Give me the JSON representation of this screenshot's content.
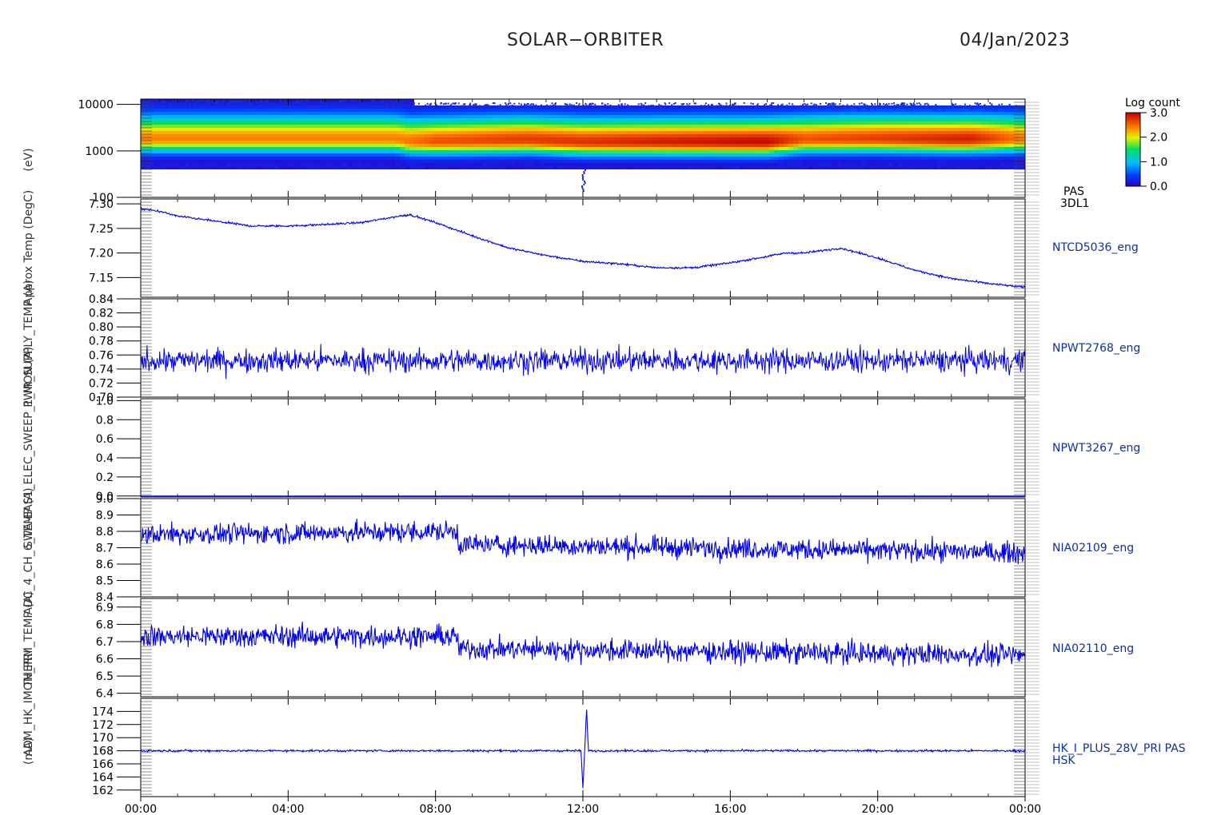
{
  "header": {
    "title": "SOLAR−ORBITER",
    "date": "04/Jan/2023"
  },
  "x_axis": {
    "range": [
      "00:00",
      "24:00"
    ],
    "tick_labels": [
      "00:00",
      "04:00",
      "08:00",
      "12:00",
      "16:00",
      "20:00",
      "00:00"
    ],
    "tick_hours": [
      0,
      4,
      8,
      12,
      16,
      20,
      24
    ]
  },
  "colorbar": {
    "title": "Log count",
    "ticks": [
      "3.0",
      "2.0",
      "1.0",
      "0.0"
    ],
    "range": [
      0,
      3
    ]
  },
  "side_labels": {
    "p0": [
      "PAS",
      "3DL1"
    ],
    "p1": [
      "NTCD5036_eng"
    ],
    "p2": [
      "NPWT2768_eng"
    ],
    "p3": [
      "NPWT3267_eng"
    ],
    "p4": [
      "NIA02109_eng"
    ],
    "p5": [
      "NIA02110_eng"
    ],
    "p6": [
      "HK_I_PLUS_28V_PRI PAS",
      "HSK"
    ]
  },
  "left_axis_titles": [
    "(eV)",
    "Approx Temp (DegC)",
    "PWR_SUPPLY_TEMP (A)",
    "SWA-EAS1_ELEC_SWEEP_1_MON (A)",
    "ADC_4_CH_6_TEMP (A)",
    "THERM_TEMP (A)",
    "(mA)",
    "ADM_HK_IMON_PRI"
  ],
  "chart_data": [
    {
      "type": "heatmap",
      "name": "PAS 3DL1",
      "ylabel": "(eV)",
      "ylog": true,
      "ylim": [
        100,
        13000
      ],
      "yticks": [
        100,
        1000,
        10000
      ],
      "ytick_labels": [
        "100",
        "1000",
        "10000"
      ],
      "color_range": [
        0,
        3
      ],
      "peak_energy_eV": [
        [
          0,
          1800
        ],
        [
          6.9,
          1800
        ],
        [
          7.3,
          1600
        ],
        [
          8,
          1600
        ],
        [
          10.5,
          1700
        ],
        [
          12,
          1550
        ],
        [
          14,
          1550
        ],
        [
          17,
          1550
        ],
        [
          18,
          1750
        ],
        [
          20,
          1800
        ],
        [
          22,
          1750
        ],
        [
          24,
          1800
        ]
      ],
      "peak_log_count": [
        [
          0,
          2.4
        ],
        [
          7,
          2.4
        ],
        [
          8,
          2.6
        ],
        [
          10,
          2.7
        ],
        [
          12,
          2.75
        ],
        [
          14,
          2.85
        ],
        [
          17,
          2.95
        ],
        [
          18,
          2.6
        ],
        [
          20,
          2.7
        ],
        [
          22.5,
          2.85
        ],
        [
          24,
          2.4
        ]
      ]
    },
    {
      "type": "line",
      "name": "NTCD5036_eng",
      "ylabel": "Approx Temp (DegC)",
      "ylim": [
        7.11,
        7.31
      ],
      "yticks": [
        7.15,
        7.2,
        7.25,
        7.3
      ],
      "ytick_labels": [
        "7.15",
        "7.20",
        "7.25",
        "7.30"
      ],
      "x": [
        0,
        0.5,
        1,
        2,
        3,
        4,
        5,
        6,
        7,
        7.3,
        8,
        9,
        10,
        11,
        12,
        13,
        14,
        15,
        16,
        17,
        17.5,
        18,
        19,
        20,
        21,
        22,
        23,
        24
      ],
      "y": [
        7.29,
        7.285,
        7.275,
        7.265,
        7.255,
        7.255,
        7.258,
        7.262,
        7.275,
        7.278,
        7.262,
        7.235,
        7.21,
        7.195,
        7.183,
        7.178,
        7.17,
        7.17,
        7.18,
        7.193,
        7.2,
        7.2,
        7.21,
        7.19,
        7.165,
        7.148,
        7.138,
        7.13
      ],
      "noise": 0.002
    },
    {
      "type": "line",
      "name": "NPWT2768_eng",
      "ylabel": "PWR_SUPPLY_TEMP (A)",
      "ylim": [
        0.7,
        0.84
      ],
      "yticks": [
        0.7,
        0.72,
        0.74,
        0.76,
        0.78,
        0.8,
        0.82,
        0.84
      ],
      "ytick_labels": [
        "0.70",
        "0.72",
        "0.74",
        "0.76",
        "0.78",
        "0.80",
        "0.82",
        "0.84"
      ],
      "x": [
        0,
        24
      ],
      "y": [
        0.752,
        0.752
      ],
      "noise": 0.016
    },
    {
      "type": "line",
      "name": "NPWT3267_eng",
      "ylabel": "SWA-EAS1_ELEC_SWEEP_1_MON (A)",
      "ylim": [
        -0.01,
        1.02
      ],
      "yticks": [
        0,
        0.2,
        0.4,
        0.6,
        0.8,
        1.0
      ],
      "ytick_labels": [
        "0.0",
        "0.2",
        "0.4",
        "0.6",
        "0.8",
        "1.0"
      ],
      "x": [
        0,
        24
      ],
      "y": [
        0.0,
        0.0
      ],
      "noise": 0.0
    },
    {
      "type": "line",
      "name": "NIA02109_eng",
      "ylabel": "ADC_4_CH_6_TEMP (A)",
      "ylim": [
        8.4,
        9.0
      ],
      "yticks": [
        8.4,
        8.5,
        8.6,
        8.7,
        8.8,
        8.9,
        9.0
      ],
      "ytick_labels": [
        "8.4",
        "8.5",
        "8.6",
        "8.7",
        "8.8",
        "8.9",
        "9.0"
      ],
      "x": [
        0,
        8.6,
        8.61,
        24
      ],
      "y": [
        8.78,
        8.8,
        8.72,
        8.67
      ],
      "noise": 0.06
    },
    {
      "type": "line",
      "name": "NIA02110_eng",
      "ylabel": "THERM_TEMP (A)",
      "ylim": [
        6.38,
        6.95
      ],
      "yticks": [
        6.4,
        6.5,
        6.6,
        6.7,
        6.8,
        6.9
      ],
      "ytick_labels": [
        "6.4",
        "6.5",
        "6.6",
        "6.7",
        "6.8",
        "6.9"
      ],
      "x": [
        0,
        8.6,
        8.61,
        24
      ],
      "y": [
        6.73,
        6.73,
        6.66,
        6.62
      ],
      "noise": 0.06
    },
    {
      "type": "line",
      "name": "HK_I_PLUS_28V_PRI PAS HSK",
      "ylabel": "ADM_HK_IMON_PRI (mA)",
      "ylim": [
        161,
        176
      ],
      "yticks": [
        162,
        164,
        166,
        168,
        170,
        172,
        174
      ],
      "ytick_labels": [
        "162",
        "164",
        "166",
        "168",
        "170",
        "172",
        "174"
      ],
      "x": [
        0,
        11.95,
        12.0,
        12.1,
        12.15,
        24
      ],
      "y": [
        168,
        168,
        162.2,
        174.5,
        168,
        168
      ],
      "noise": 0.15
    }
  ]
}
